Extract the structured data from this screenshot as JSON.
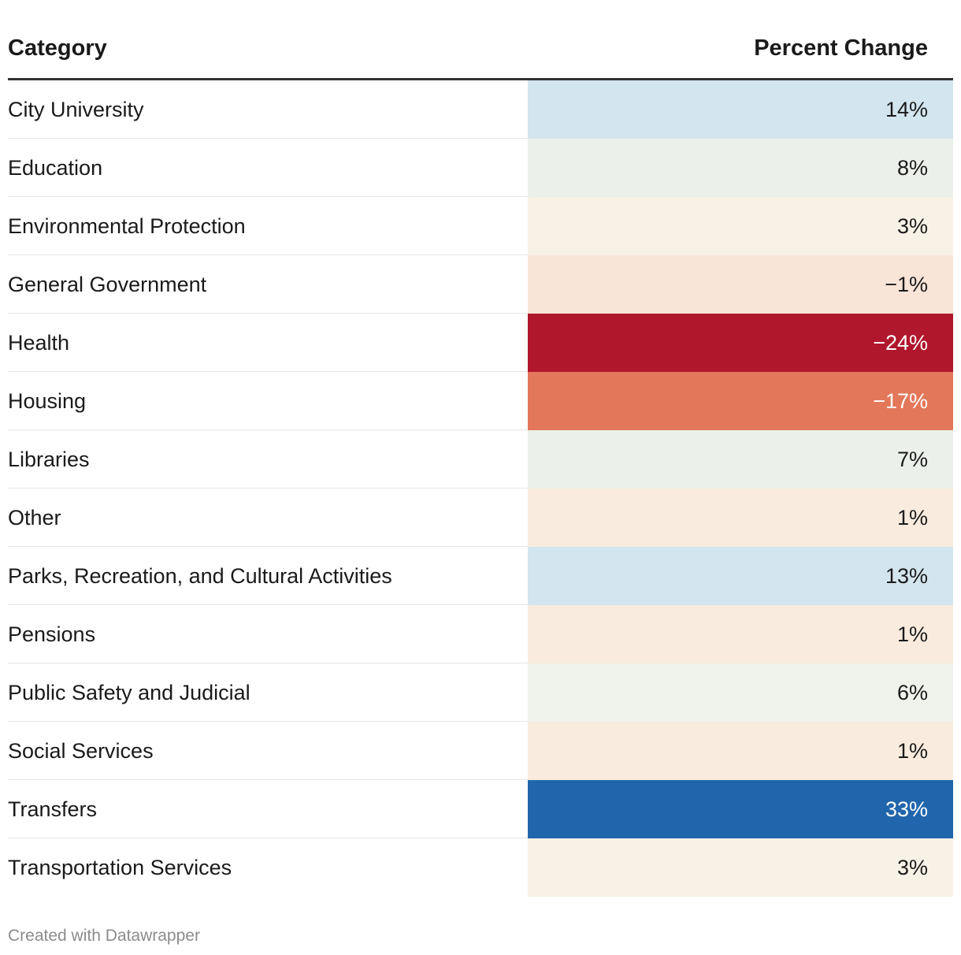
{
  "chart_data": {
    "type": "table",
    "title": "",
    "columns": [
      "Category",
      "Percent Change"
    ],
    "rows": [
      {
        "category": "City University",
        "value": 14,
        "label": "14%"
      },
      {
        "category": "Education",
        "value": 8,
        "label": "8%"
      },
      {
        "category": "Environmental Protection",
        "value": 3,
        "label": "3%"
      },
      {
        "category": "General Government",
        "value": -1,
        "label": "−1%"
      },
      {
        "category": "Health",
        "value": -24,
        "label": "−24%"
      },
      {
        "category": "Housing",
        "value": -17,
        "label": "−17%"
      },
      {
        "category": "Libraries",
        "value": 7,
        "label": "7%"
      },
      {
        "category": "Other",
        "value": 1,
        "label": "1%"
      },
      {
        "category": "Parks, Recreation, and Cultural Activities",
        "value": 13,
        "label": "13%"
      },
      {
        "category": "Pensions",
        "value": 1,
        "label": "1%"
      },
      {
        "category": "Public Safety and Judicial",
        "value": 6,
        "label": "6%"
      },
      {
        "category": "Social Services",
        "value": 1,
        "label": "1%"
      },
      {
        "category": "Transfers",
        "value": 33,
        "label": "33%"
      },
      {
        "category": "Transportation Services",
        "value": 3,
        "label": "3%"
      }
    ],
    "cell_colors": [
      "#d3e5ef",
      "#ecf0ea",
      "#f8f1e5",
      "#f9e5d8",
      "#b0172c",
      "#e3775a",
      "#ecf0ea",
      "#f9ebdd",
      "#d3e5ef",
      "#f9ebdd",
      "#eff1eb",
      "#f9ebdd",
      "#2166ac",
      "#f8f1e5"
    ],
    "cell_text_colors": [
      "#1a1a1a",
      "#1a1a1a",
      "#1a1a1a",
      "#1a1a1a",
      "#ffffff",
      "#ffffff",
      "#1a1a1a",
      "#1a1a1a",
      "#1a1a1a",
      "#1a1a1a",
      "#1a1a1a",
      "#1a1a1a",
      "#ffffff",
      "#1a1a1a"
    ]
  },
  "footer": {
    "credit": "Created with Datawrapper"
  }
}
